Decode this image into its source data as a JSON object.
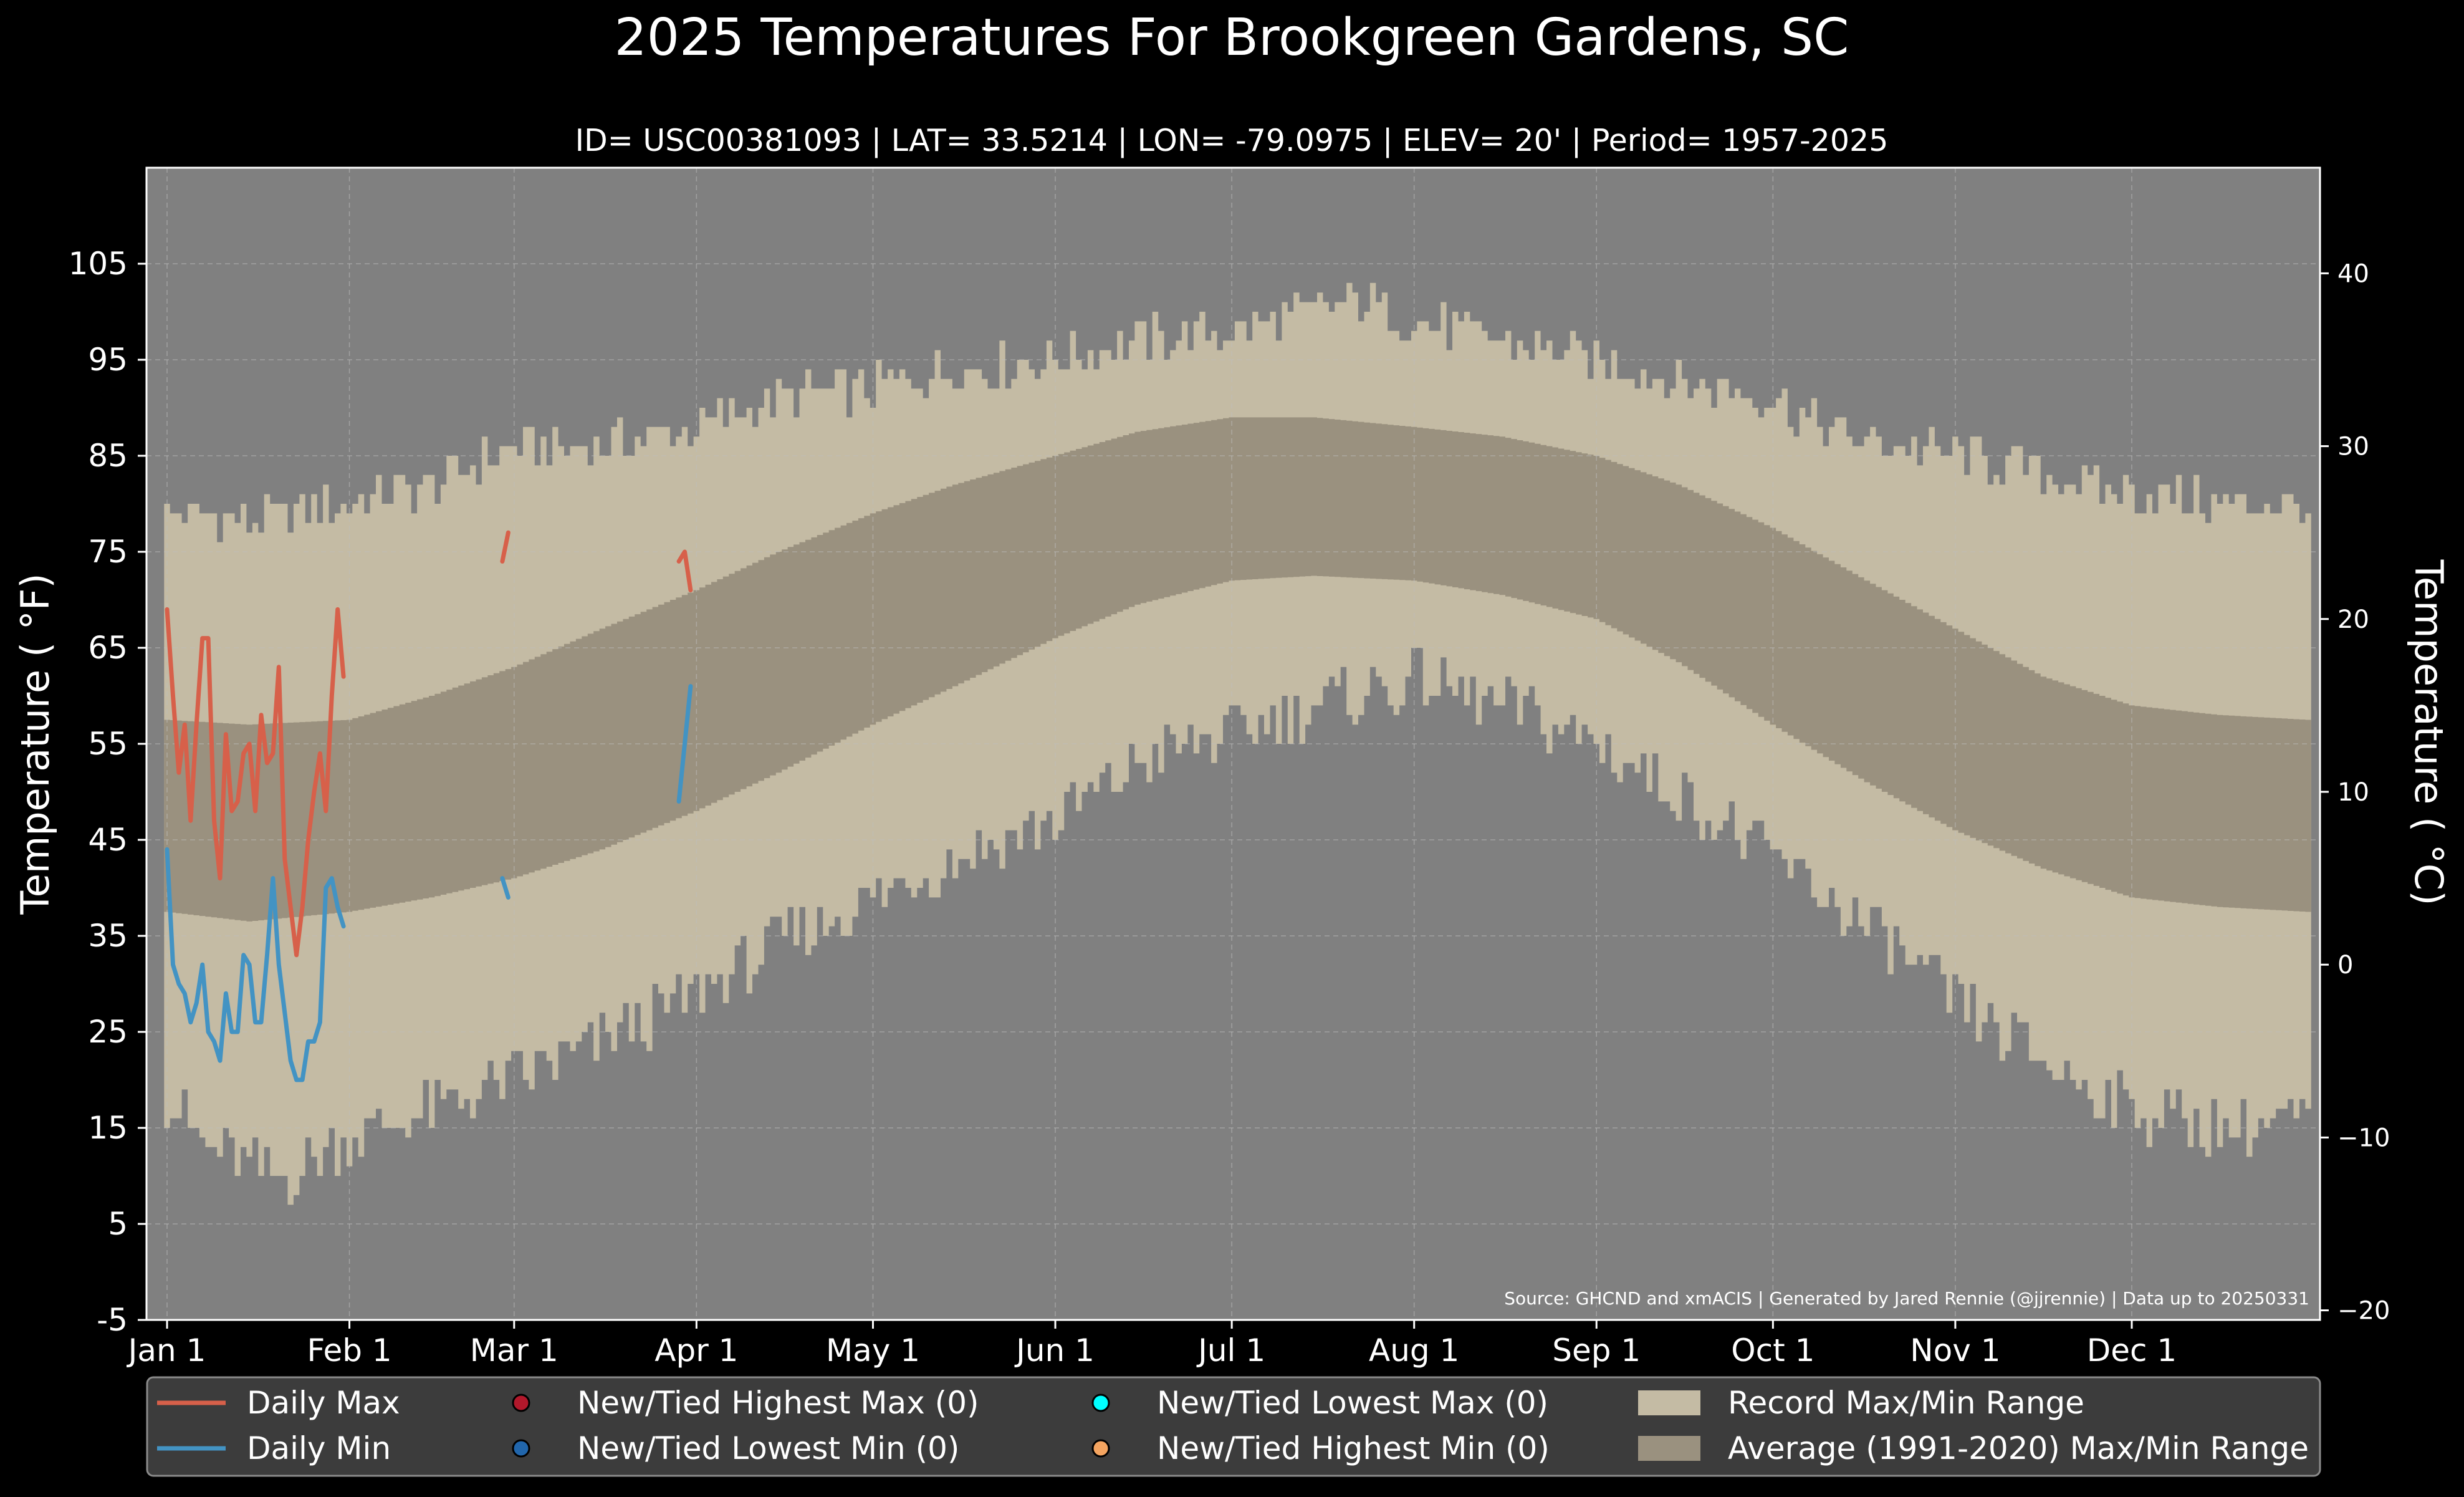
{
  "chart_data": {
    "type": "area",
    "title": "2025 Temperatures For Brookgreen Gardens, SC",
    "subtitle": "ID= USC00381093 | LAT= 33.5214 | LON= -79.0975 | ELEV= 20' | Period= 1957-2025",
    "ylabel": "Temperature ($^\\circ$F)",
    "ylabel_display": "Temperature ( °F)",
    "y2label_display": "Temperature ( °C)",
    "source": "Source: GHCND and xmACIS | Generated by Jared Rennie (@jjrennie) | Data up to 20250331",
    "ylim": [
      -5,
      115
    ],
    "xlim": [
      -2.5,
      367
    ],
    "yticks": [
      -5,
      5,
      15,
      25,
      35,
      45,
      55,
      65,
      75,
      85,
      95,
      105
    ],
    "y2ticks": [
      -20,
      -10,
      0,
      10,
      20,
      30,
      40
    ],
    "y2tick_labels": [
      "−20",
      "−10",
      "0",
      "10",
      "20",
      "30",
      "40"
    ],
    "xticks": [
      {
        "day": 1,
        "label": "Jan 1"
      },
      {
        "day": 32,
        "label": "Feb 1"
      },
      {
        "day": 60,
        "label": "Mar 1"
      },
      {
        "day": 91,
        "label": "Apr 1"
      },
      {
        "day": 121,
        "label": "May 1"
      },
      {
        "day": 152,
        "label": "Jun 1"
      },
      {
        "day": 182,
        "label": "Jul 1"
      },
      {
        "day": 213,
        "label": "Aug 1"
      },
      {
        "day": 244,
        "label": "Sep 1"
      },
      {
        "day": 274,
        "label": "Oct 1"
      },
      {
        "day": 305,
        "label": "Nov 1"
      },
      {
        "day": 335,
        "label": "Dec 1"
      }
    ],
    "grid": true,
    "legend_position": "bottom",
    "colors": {
      "background": "#000000",
      "plot_background": "#808080",
      "record_range": "#c4bba4",
      "average_range": "#9a917f",
      "daily_max": "#d7604a",
      "daily_min": "#4393c3",
      "grid": "#bdbdbd",
      "legend_background": "#3c3c3c",
      "marker_highest_max": "#b2182b",
      "marker_lowest_min": "#2166ac",
      "marker_lowest_max": "#00ffff",
      "marker_highest_min": "#f4a460"
    },
    "record_max_keypoints": [
      [
        1,
        79
      ],
      [
        15,
        78
      ],
      [
        32,
        80
      ],
      [
        46,
        82
      ],
      [
        60,
        86
      ],
      [
        75,
        86
      ],
      [
        91,
        88
      ],
      [
        105,
        91
      ],
      [
        121,
        92
      ],
      [
        135,
        94
      ],
      [
        152,
        95
      ],
      [
        166,
        97
      ],
      [
        182,
        98
      ],
      [
        196,
        100
      ],
      [
        205,
        101
      ],
      [
        213,
        99
      ],
      [
        228,
        97
      ],
      [
        244,
        95
      ],
      [
        258,
        93
      ],
      [
        274,
        91
      ],
      [
        285,
        87
      ],
      [
        305,
        85
      ],
      [
        320,
        83
      ],
      [
        335,
        81
      ],
      [
        350,
        80
      ],
      [
        365,
        80
      ]
    ],
    "record_min_keypoints": [
      [
        1,
        18
      ],
      [
        8,
        13
      ],
      [
        15,
        11
      ],
      [
        22,
        10
      ],
      [
        32,
        14
      ],
      [
        46,
        17
      ],
      [
        60,
        20
      ],
      [
        75,
        24
      ],
      [
        91,
        29
      ],
      [
        105,
        34
      ],
      [
        121,
        39
      ],
      [
        135,
        43
      ],
      [
        152,
        47
      ],
      [
        166,
        53
      ],
      [
        182,
        56
      ],
      [
        196,
        59
      ],
      [
        210,
        61
      ],
      [
        213,
        62
      ],
      [
        228,
        59
      ],
      [
        244,
        55
      ],
      [
        258,
        50
      ],
      [
        274,
        43
      ],
      [
        290,
        36
      ],
      [
        305,
        28
      ],
      [
        320,
        22
      ],
      [
        335,
        17
      ],
      [
        350,
        15
      ],
      [
        365,
        16
      ]
    ],
    "record_noise_amplitude": 2.5,
    "average_max_keypoints": [
      [
        1,
        57.5
      ],
      [
        15,
        57
      ],
      [
        32,
        57.5
      ],
      [
        46,
        60
      ],
      [
        60,
        63
      ],
      [
        75,
        67
      ],
      [
        91,
        71
      ],
      [
        105,
        75
      ],
      [
        121,
        79
      ],
      [
        135,
        82
      ],
      [
        152,
        85
      ],
      [
        166,
        87.5
      ],
      [
        182,
        89
      ],
      [
        196,
        89
      ],
      [
        213,
        88
      ],
      [
        228,
        87
      ],
      [
        244,
        85
      ],
      [
        258,
        82
      ],
      [
        274,
        77.5
      ],
      [
        290,
        72
      ],
      [
        305,
        67
      ],
      [
        320,
        62
      ],
      [
        335,
        59
      ],
      [
        350,
        58
      ],
      [
        365,
        57.5
      ]
    ],
    "average_min_keypoints": [
      [
        1,
        37.5
      ],
      [
        15,
        36.5
      ],
      [
        32,
        37.5
      ],
      [
        46,
        39
      ],
      [
        60,
        41
      ],
      [
        75,
        44
      ],
      [
        91,
        48
      ],
      [
        105,
        52
      ],
      [
        121,
        57
      ],
      [
        135,
        61
      ],
      [
        152,
        66
      ],
      [
        166,
        69.5
      ],
      [
        182,
        72
      ],
      [
        196,
        72.5
      ],
      [
        213,
        72
      ],
      [
        228,
        70.5
      ],
      [
        244,
        68
      ],
      [
        258,
        63.5
      ],
      [
        274,
        57
      ],
      [
        290,
        51
      ],
      [
        305,
        46
      ],
      [
        320,
        42
      ],
      [
        335,
        39
      ],
      [
        350,
        38
      ],
      [
        365,
        37.5
      ]
    ],
    "series": [
      {
        "name": "Daily Max",
        "segments": [
          {
            "start_day": 1,
            "values": [
              69,
              60,
              52,
              57,
              47,
              57,
              66,
              66,
              47,
              41,
              56,
              48,
              49,
              54,
              55,
              48,
              58,
              53,
              54,
              63,
              43,
              38,
              33,
              38,
              45,
              50,
              54,
              48,
              60,
              69,
              62
            ]
          },
          {
            "start_day": 58,
            "values": [
              74,
              77
            ]
          },
          {
            "start_day": 88,
            "values": [
              74,
              75,
              71
            ]
          }
        ]
      },
      {
        "name": "Daily Min",
        "segments": [
          {
            "start_day": 1,
            "values": [
              44,
              32,
              30,
              29,
              26,
              28,
              32,
              25,
              24,
              22,
              29,
              25,
              25,
              33,
              32,
              26,
              26,
              33,
              41,
              32,
              27,
              22,
              20,
              20,
              24,
              24,
              26,
              40,
              41,
              38,
              36
            ]
          },
          {
            "start_day": 58,
            "values": [
              41,
              39
            ]
          },
          {
            "start_day": 88,
            "values": [
              49,
              55,
              61
            ]
          }
        ]
      }
    ],
    "legend": [
      {
        "label": "Daily Max",
        "kind": "line",
        "color": "#d7604a"
      },
      {
        "label": "Daily Min",
        "kind": "line",
        "color": "#4393c3"
      },
      {
        "label": "New/Tied Highest Max (0)",
        "kind": "dot",
        "color": "#b2182b"
      },
      {
        "label": "New/Tied Lowest Min (0)",
        "kind": "dot",
        "color": "#2166ac"
      },
      {
        "label": "New/Tied Lowest Max (0)",
        "kind": "dot",
        "color": "#00ffff"
      },
      {
        "label": "New/Tied Highest Min (0)",
        "kind": "dot",
        "color": "#f4a460"
      },
      {
        "label": "Record Max/Min Range",
        "kind": "box",
        "color": "#c4bba4"
      },
      {
        "label": "Average (1991-2020) Max/Min Range",
        "kind": "box",
        "color": "#9a917f"
      }
    ]
  }
}
